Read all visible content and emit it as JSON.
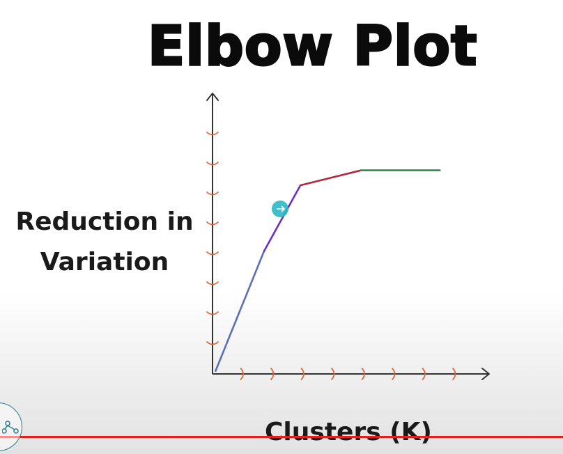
{
  "chart_data": {
    "type": "line",
    "title": "Elbow Plot",
    "xlabel": "Clusters (K)",
    "ylabel": "Reduction in Variation",
    "ylabel_lines": [
      "Reduction in",
      "Variation"
    ],
    "xlim": [
      0,
      9
    ],
    "ylim": [
      0,
      9
    ],
    "x_ticks": [
      1,
      2,
      3,
      4,
      5,
      6,
      7,
      8
    ],
    "y_ticks": [
      1,
      2,
      3,
      4,
      5,
      6,
      7,
      8
    ],
    "grid": false,
    "series": [
      {
        "color": "#5b6fb8",
        "points": [
          [
            0.1,
            0.1
          ],
          [
            1.7,
            4.1
          ]
        ]
      },
      {
        "color": "#6a2fc4",
        "points": [
          [
            1.7,
            4.1
          ],
          [
            2.9,
            6.3
          ]
        ]
      },
      {
        "color": "#b2283e",
        "points": [
          [
            2.9,
            6.3
          ],
          [
            4.9,
            6.8
          ]
        ]
      },
      {
        "color": "#2d8b47",
        "points": [
          [
            4.9,
            6.8
          ],
          [
            7.5,
            6.8
          ]
        ]
      }
    ],
    "axis_color": "#333333",
    "tick_color": "#e0683a"
  },
  "cursor": {
    "color": "#2bb8c4"
  }
}
